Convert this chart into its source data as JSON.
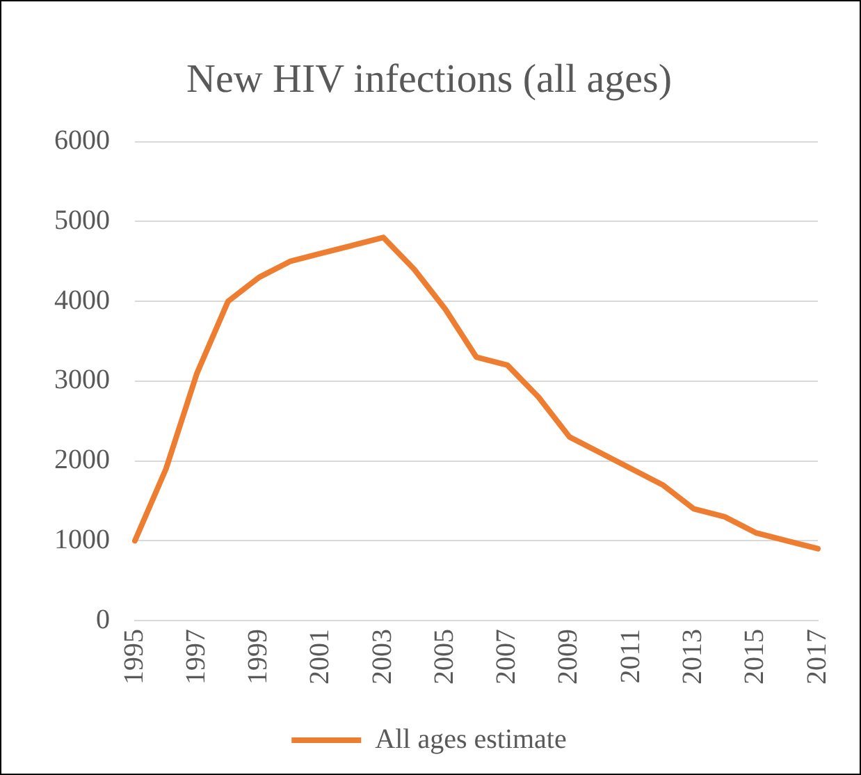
{
  "chart_data": {
    "type": "line",
    "title": "New HIV infections (all ages)",
    "categories": [
      "1995",
      null,
      "1997",
      null,
      "1999",
      null,
      "2001",
      null,
      "2003",
      null,
      "2005",
      null,
      "2007",
      null,
      "2009",
      null,
      "2011",
      null,
      "2013",
      null,
      "2015",
      null,
      "2017"
    ],
    "series": [
      {
        "name": "All ages estimate",
        "color": "#ed7d31",
        "values": [
          1000,
          1900,
          3100,
          4000,
          4300,
          4500,
          4600,
          4700,
          4800,
          4400,
          3900,
          3300,
          3200,
          2800,
          2300,
          2100,
          1900,
          1700,
          1400,
          1300,
          1100,
          1000,
          900
        ]
      }
    ],
    "ylim": [
      0,
      6000
    ],
    "yticks": [
      0,
      1000,
      2000,
      3000,
      4000,
      5000,
      6000
    ],
    "grid": "y",
    "legend": "bottom",
    "marker": "none",
    "line_style": "solid"
  }
}
